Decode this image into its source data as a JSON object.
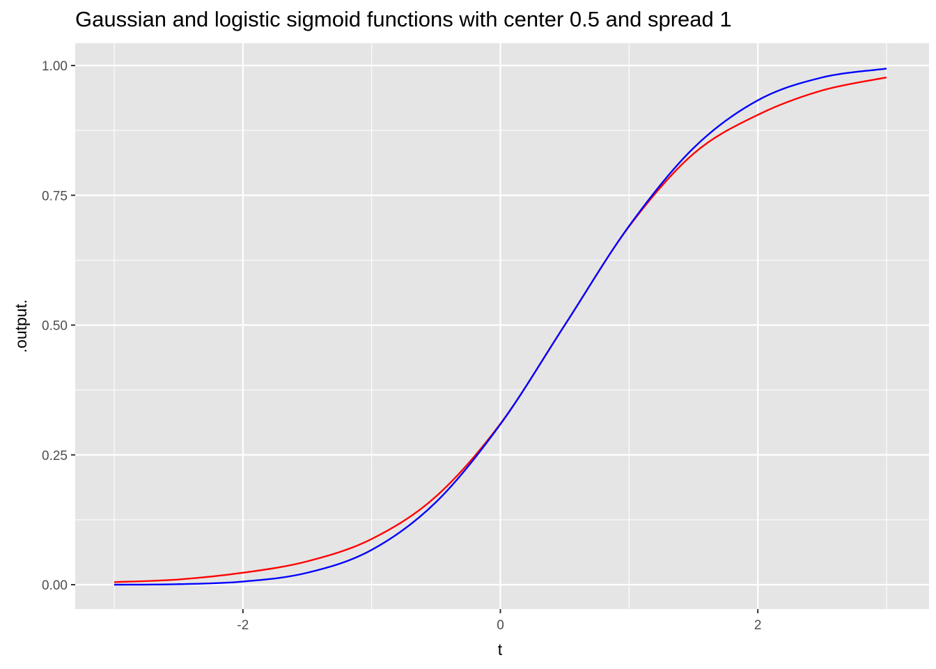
{
  "chart_data": {
    "type": "line",
    "title": "Gaussian and logistic sigmoid functions with center 0.5 and spread 1",
    "xlabel": "t",
    "ylabel": ".output.",
    "xlim": [
      -3,
      3
    ],
    "ylim": [
      0,
      1
    ],
    "x_ticks": [
      -2,
      0,
      2
    ],
    "x_tick_labels": [
      "-2",
      "0",
      "2"
    ],
    "y_ticks": [
      0,
      0.25,
      0.5,
      0.75,
      1.0
    ],
    "y_tick_labels": [
      "0.00",
      "0.25",
      "0.50",
      "0.75",
      "1.00"
    ],
    "grid": true,
    "legend": "none",
    "x": [
      -3.0,
      -2.5,
      -2.0,
      -1.5,
      -1.0,
      -0.5,
      0.0,
      0.5,
      1.0,
      1.5,
      2.0,
      2.5,
      3.0
    ],
    "series": [
      {
        "color": "#ff0000",
        "values": [
          0.005,
          0.01,
          0.023,
          0.045,
          0.088,
          0.17,
          0.31,
          0.5,
          0.69,
          0.83,
          0.905,
          0.952,
          0.977
        ]
      },
      {
        "color": "#0000ff",
        "values": [
          0.0,
          0.001,
          0.006,
          0.023,
          0.067,
          0.159,
          0.309,
          0.5,
          0.691,
          0.841,
          0.933,
          0.977,
          0.994
        ]
      }
    ]
  }
}
